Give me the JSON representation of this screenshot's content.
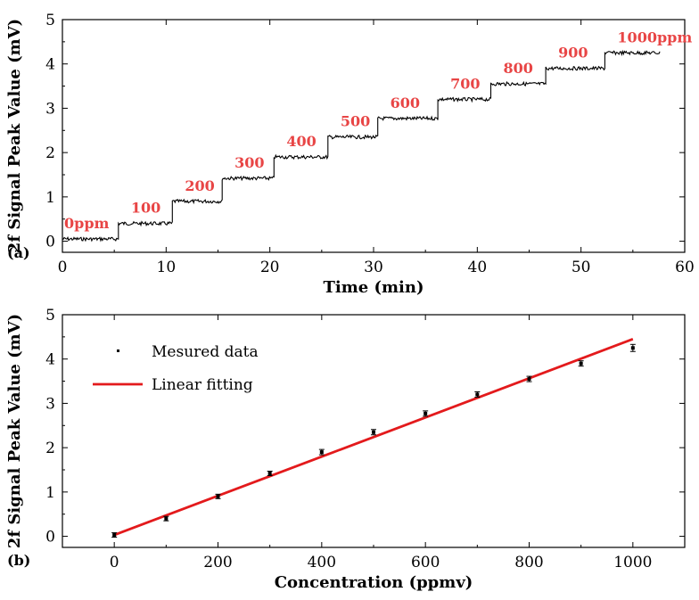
{
  "chart_data": [
    {
      "panel_label": "(a)",
      "type": "line",
      "xlabel": "Time (min)",
      "ylabel": "2f Signal Peak Value (mV)",
      "xlim": [
        0,
        60
      ],
      "ylim": [
        -0.25,
        5
      ],
      "xticks": [
        0,
        10,
        20,
        30,
        40,
        50,
        60
      ],
      "yticks": [
        0,
        1,
        2,
        3,
        4,
        5
      ],
      "grid": false,
      "series": [
        {
          "steps": [
            {
              "start": 0,
              "end": 5.4,
              "value": 0.05,
              "label": "0ppm"
            },
            {
              "start": 5.4,
              "end": 10.6,
              "value": 0.4,
              "label": "100"
            },
            {
              "start": 10.6,
              "end": 15.4,
              "value": 0.9,
              "label": "200"
            },
            {
              "start": 15.4,
              "end": 20.4,
              "value": 1.42,
              "label": "300"
            },
            {
              "start": 20.4,
              "end": 25.6,
              "value": 1.9,
              "label": "400"
            },
            {
              "start": 25.6,
              "end": 30.4,
              "value": 2.35,
              "label": "500"
            },
            {
              "start": 30.4,
              "end": 36.2,
              "value": 2.77,
              "label": "600"
            },
            {
              "start": 36.2,
              "end": 41.3,
              "value": 3.2,
              "label": "700"
            },
            {
              "start": 41.3,
              "end": 46.6,
              "value": 3.55,
              "label": "800"
            },
            {
              "start": 46.6,
              "end": 52.3,
              "value": 3.9,
              "label": "900"
            },
            {
              "start": 52.3,
              "end": 57.6,
              "value": 4.25,
              "label": "1000ppm"
            }
          ]
        }
      ]
    },
    {
      "panel_label": "(b)",
      "type": "scatter",
      "xlabel": "Concentration (ppmv)",
      "ylabel": "2f Signal Peak Value (mV)",
      "xlim": [
        -100,
        1100
      ],
      "ylim": [
        -0.25,
        5
      ],
      "xticks": [
        0,
        200,
        400,
        600,
        800,
        1000
      ],
      "yticks": [
        0,
        1,
        2,
        3,
        4,
        5
      ],
      "grid": false,
      "legend_position": "top-left",
      "series": [
        {
          "name": "Mesured data",
          "kind": "points-with-error",
          "x": [
            0,
            100,
            200,
            300,
            400,
            500,
            600,
            700,
            800,
            900,
            1000
          ],
          "y": [
            0.03,
            0.4,
            0.9,
            1.42,
            1.9,
            2.35,
            2.77,
            3.2,
            3.55,
            3.9,
            4.25
          ],
          "err": [
            0.05,
            0.05,
            0.05,
            0.05,
            0.06,
            0.06,
            0.06,
            0.06,
            0.06,
            0.06,
            0.08
          ]
        },
        {
          "name": "Linear fitting",
          "kind": "line",
          "color": "#e31a1c",
          "x": [
            0,
            1000
          ],
          "y": [
            0.03,
            4.45
          ]
        }
      ]
    }
  ]
}
